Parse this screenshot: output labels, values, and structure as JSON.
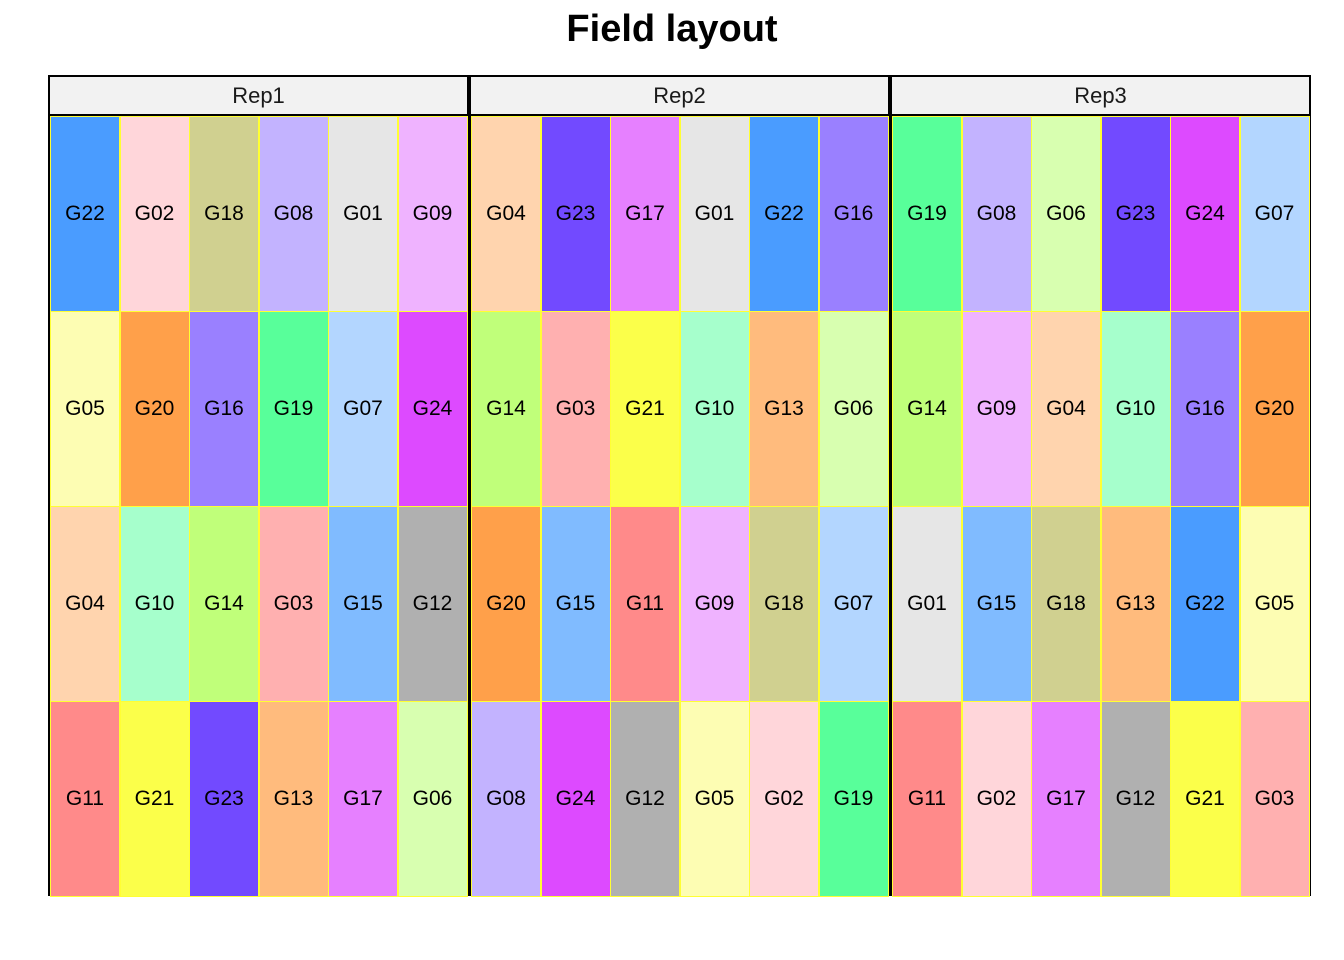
{
  "chart_data": {
    "type": "heatmap",
    "title": "Field layout",
    "rows": 4,
    "cols": 6,
    "colors": {
      "G01": "#e6e6e6",
      "G02": "#ffd6da",
      "G03": "#ffb0b0",
      "G04": "#ffd4ae",
      "G05": "#fdfdb3",
      "G06": "#d8ffb0",
      "G07": "#b3d6ff",
      "G08": "#c3b3ff",
      "G09": "#efb3ff",
      "G10": "#a6ffcc",
      "G11": "#ff8a8a",
      "G12": "#b0b0b0",
      "G13": "#ffbb7d",
      "G14": "#c0ff7a",
      "G15": "#80bbff",
      "G16": "#9a80ff",
      "G17": "#e680ff",
      "G18": "#d0d090",
      "G19": "#58ff9a",
      "G20": "#ffa04a",
      "G21": "#fbff4a",
      "G22": "#4a9cff",
      "G23": "#724aff",
      "G24": "#dd4aff"
    },
    "panels": [
      {
        "label": "Rep1",
        "plots": [
          [
            "G22",
            "G02",
            "G18",
            "G08",
            "G01",
            "G09"
          ],
          [
            "G05",
            "G20",
            "G16",
            "G19",
            "G07",
            "G24"
          ],
          [
            "G04",
            "G10",
            "G14",
            "G03",
            "G15",
            "G12"
          ],
          [
            "G11",
            "G21",
            "G23",
            "G13",
            "G17",
            "G06"
          ]
        ]
      },
      {
        "label": "Rep2",
        "plots": [
          [
            "G04",
            "G23",
            "G17",
            "G01",
            "G22",
            "G16"
          ],
          [
            "G14",
            "G03",
            "G21",
            "G10",
            "G13",
            "G06"
          ],
          [
            "G20",
            "G15",
            "G11",
            "G09",
            "G18",
            "G07"
          ],
          [
            "G08",
            "G24",
            "G12",
            "G05",
            "G02",
            "G19"
          ]
        ]
      },
      {
        "label": "Rep3",
        "plots": [
          [
            "G19",
            "G08",
            "G06",
            "G23",
            "G24",
            "G07"
          ],
          [
            "G14",
            "G09",
            "G04",
            "G10",
            "G16",
            "G20"
          ],
          [
            "G01",
            "G15",
            "G18",
            "G13",
            "G22",
            "G05"
          ],
          [
            "G11",
            "G02",
            "G17",
            "G12",
            "G21",
            "G03"
          ]
        ]
      }
    ]
  }
}
